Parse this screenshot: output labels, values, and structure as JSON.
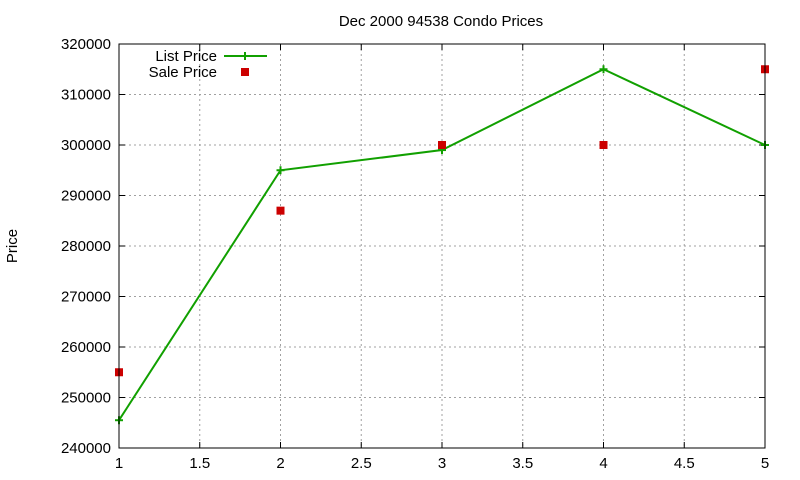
{
  "chart_data": {
    "type": "line",
    "title": "Dec 2000 94538 Condo Prices",
    "xlabel": "",
    "ylabel": "Price",
    "xlim": [
      1,
      5
    ],
    "ylim": [
      240000,
      320000
    ],
    "xticks": [
      "1",
      "1.5",
      "2",
      "2.5",
      "3",
      "3.5",
      "4",
      "4.5",
      "5"
    ],
    "yticks": [
      "240000",
      "250000",
      "260000",
      "270000",
      "280000",
      "290000",
      "300000",
      "310000",
      "320000"
    ],
    "grid": true,
    "legend_position": "top-left",
    "series": [
      {
        "name": "List Price",
        "style": "linespoints",
        "marker": "plus",
        "color": "#11a000",
        "x": [
          1,
          2,
          3,
          4,
          5
        ],
        "y": [
          245500,
          295000,
          299000,
          315000,
          300000
        ]
      },
      {
        "name": "Sale Price",
        "style": "points",
        "marker": "square",
        "color": "#cc0000",
        "x": [
          1,
          2,
          3,
          4,
          5
        ],
        "y": [
          255000,
          287000,
          300000,
          300000,
          315000
        ]
      }
    ]
  }
}
